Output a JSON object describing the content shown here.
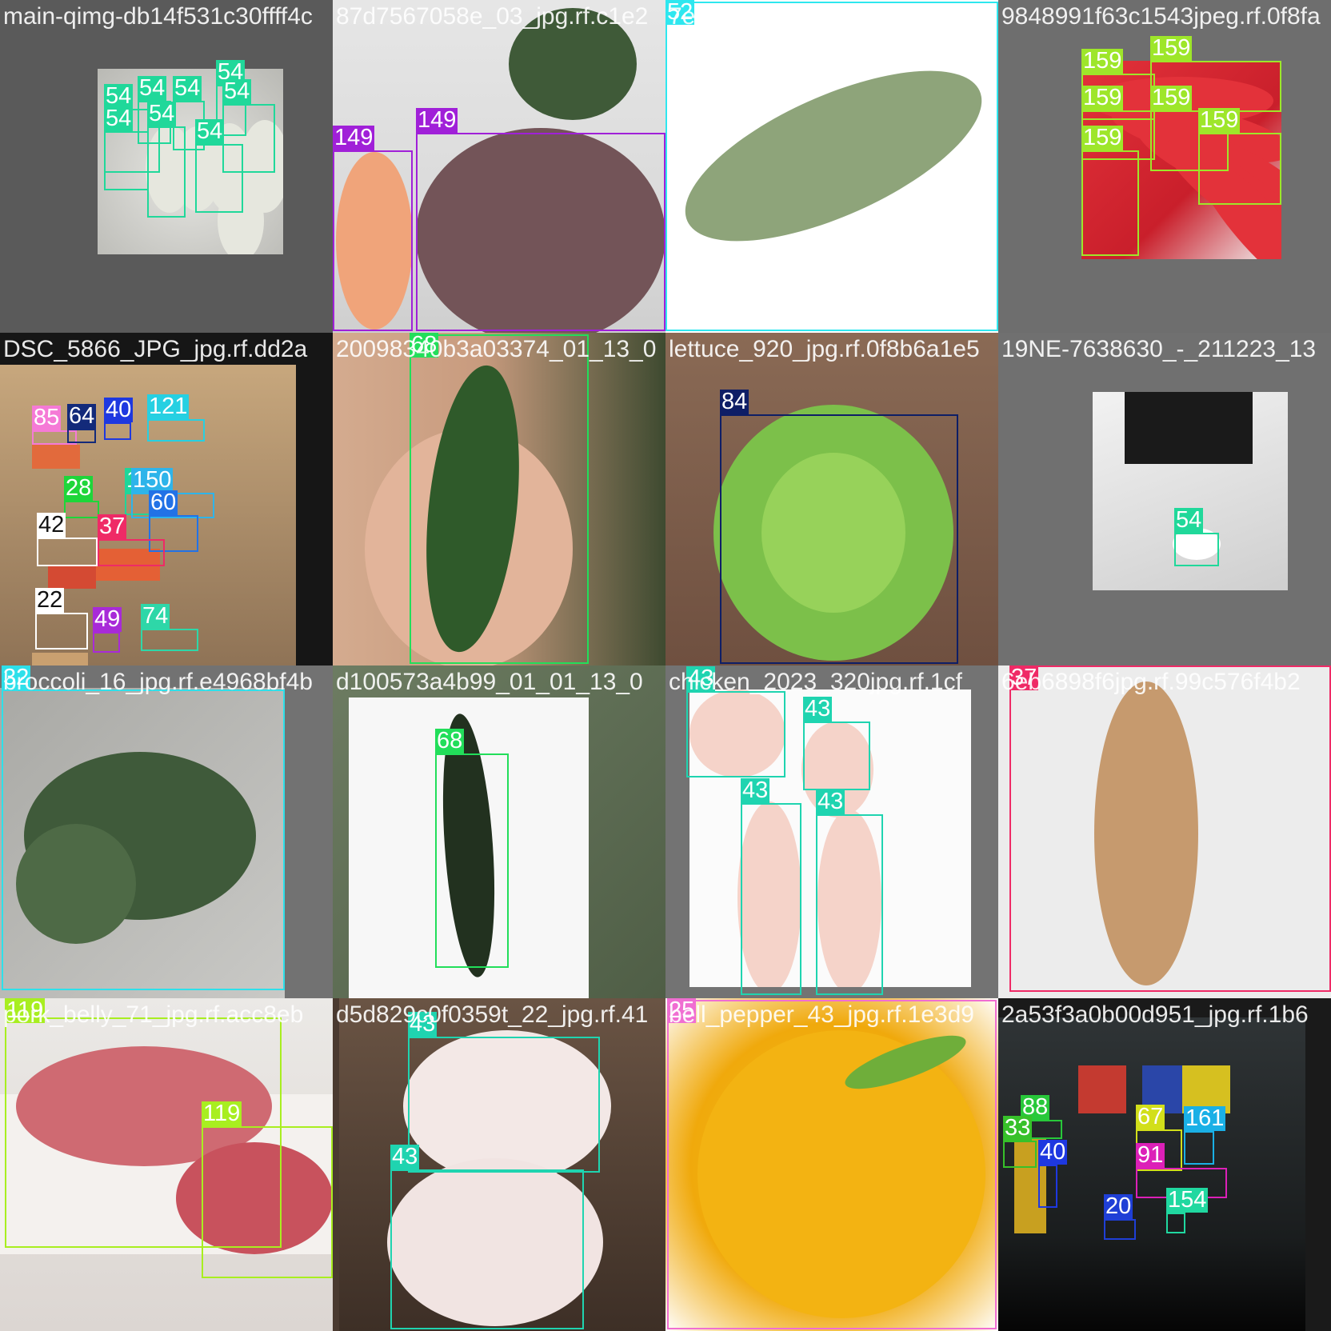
{
  "title": "",
  "colors": {
    "c22": "#ffffff",
    "c20": "#1f3fd6",
    "c25": "#f06ed2",
    "c28": "#1ed63a",
    "c32": "#2ee0ea",
    "c33": "#37c12a",
    "c37": "#ef2a66",
    "c40": "#1e38e0",
    "c42": "#ffffff",
    "c43": "#1fd4b0",
    "c49": "#a82ad8",
    "c52": "#2ee7ef",
    "c54": "#20d89a",
    "c60": "#2272e6",
    "c64": "#132a7a",
    "c67": "#d2df1a",
    "c68": "#22de5a",
    "c74": "#2ed7a8",
    "c84": "#0e1e66",
    "c85": "#f57ad6",
    "c88": "#28c83a",
    "c91": "#dc20b8",
    "c119": "#a8ee20",
    "c121": "#26d0e2",
    "c149": "#a020d8",
    "c150": "#2eb4ea",
    "c154": "#20d8a0",
    "c159": "#9ee62a",
    "c161": "#1ab0e6"
  },
  "tiles": [
    {
      "filename": "main-qimg-db14f531c30ffff4c",
      "boxes": [
        {
          "label": "54",
          "color": "#20d89a"
        },
        {
          "label": "54",
          "color": "#20d89a"
        },
        {
          "label": "54",
          "color": "#20d89a"
        },
        {
          "label": "54",
          "color": "#20d89a"
        },
        {
          "label": "54",
          "color": "#20d89a"
        },
        {
          "label": "54",
          "color": "#20d89a"
        },
        {
          "label": "54",
          "color": "#20d89a"
        },
        {
          "label": "54",
          "color": "#20d89a"
        }
      ]
    },
    {
      "filename": "87d7567058e_03_jpg.rf.c1e2",
      "boxes": [
        {
          "label": "149",
          "color": "#a020d8"
        },
        {
          "label": "149",
          "color": "#a020d8"
        }
      ]
    },
    {
      "filename": "7ee3be5f5a19_jpg.rf.a60270",
      "boxes": [
        {
          "label": "52",
          "color": "#2ee7ef"
        }
      ]
    },
    {
      "filename": "9848991f63c1543jpeg.rf.0f8fa",
      "boxes": [
        {
          "label": "159",
          "color": "#9ee62a"
        },
        {
          "label": "159",
          "color": "#9ee62a"
        },
        {
          "label": "159",
          "color": "#9ee62a"
        },
        {
          "label": "159",
          "color": "#9ee62a"
        },
        {
          "label": "159",
          "color": "#9ee62a"
        },
        {
          "label": "159",
          "color": "#9ee62a"
        }
      ]
    },
    {
      "filename": "DSC_5866_JPG_jpg.rf.dd2a",
      "boxes": [
        {
          "label": "85",
          "color": "#f57ad6"
        },
        {
          "label": "64",
          "color": "#132a7a"
        },
        {
          "label": "40",
          "color": "#1e38e0"
        },
        {
          "label": "121",
          "color": "#26d0e2"
        },
        {
          "label": "15",
          "color": "#1ed69a"
        },
        {
          "label": "150",
          "color": "#2eb4ea"
        },
        {
          "label": "28",
          "color": "#1ed63a"
        },
        {
          "label": "60",
          "color": "#2272e6"
        },
        {
          "label": "42",
          "color": "#ffffff"
        },
        {
          "label": "37",
          "color": "#ef2a66"
        },
        {
          "label": "22",
          "color": "#ffffff"
        },
        {
          "label": "49",
          "color": "#a82ad8"
        },
        {
          "label": "74",
          "color": "#2ed7a8"
        }
      ]
    },
    {
      "filename": "20098340b3a03374_01_13_0",
      "boxes": [
        {
          "label": "68",
          "color": "#22de5a"
        }
      ]
    },
    {
      "filename": "lettuce_920_jpg.rf.0f8b6a1e5",
      "boxes": [
        {
          "label": "84",
          "color": "#0e1e66"
        }
      ]
    },
    {
      "filename": "19NE-7638630_-_211223_13",
      "boxes": [
        {
          "label": "54",
          "color": "#20d89a"
        }
      ]
    },
    {
      "filename": "broccoli_16_jpg.rf.e4968bf4b",
      "boxes": [
        {
          "label": "32",
          "color": "#2ee0ea"
        }
      ]
    },
    {
      "filename": "d100573a4b99_01_01_13_0",
      "boxes": [
        {
          "label": "68",
          "color": "#22de5a"
        }
      ]
    },
    {
      "filename": "chicken_2023_320jpg.rf.1cf",
      "boxes": [
        {
          "label": "43",
          "color": "#1fd4b0"
        },
        {
          "label": "43",
          "color": "#1fd4b0"
        },
        {
          "label": "43",
          "color": "#1fd4b0"
        },
        {
          "label": "43",
          "color": "#1fd4b0"
        }
      ]
    },
    {
      "filename": "6eb6898f6jpg.rf.99c576f4b2",
      "boxes": [
        {
          "label": "37",
          "color": "#ef2a66"
        }
      ]
    },
    {
      "filename": "pork_belly_71_jpg.rf.acc8eb",
      "boxes": [
        {
          "label": "119",
          "color": "#a8ee20"
        },
        {
          "label": "119",
          "color": "#a8ee20"
        }
      ]
    },
    {
      "filename": "d5d829c0f0359t_22_jpg.rf.41",
      "boxes": [
        {
          "label": "43",
          "color": "#1fd4b0"
        },
        {
          "label": "43",
          "color": "#1fd4b0"
        }
      ]
    },
    {
      "filename": "bell_pepper_43_jpg.rf.1e3d9",
      "boxes": [
        {
          "label": "25",
          "color": "#f06ed2"
        }
      ]
    },
    {
      "filename": "2a53f3a0b00d951_jpg.rf.1b6",
      "boxes": [
        {
          "label": "88",
          "color": "#28c83a"
        },
        {
          "label": "33",
          "color": "#37c12a"
        },
        {
          "label": "67",
          "color": "#d2df1a"
        },
        {
          "label": "161",
          "color": "#1ab0e6"
        },
        {
          "label": "40",
          "color": "#1e38e0"
        },
        {
          "label": "91",
          "color": "#dc20b8"
        },
        {
          "label": "20",
          "color": "#1f3fd6"
        },
        {
          "label": "154",
          "color": "#20d8a0"
        }
      ]
    }
  ]
}
